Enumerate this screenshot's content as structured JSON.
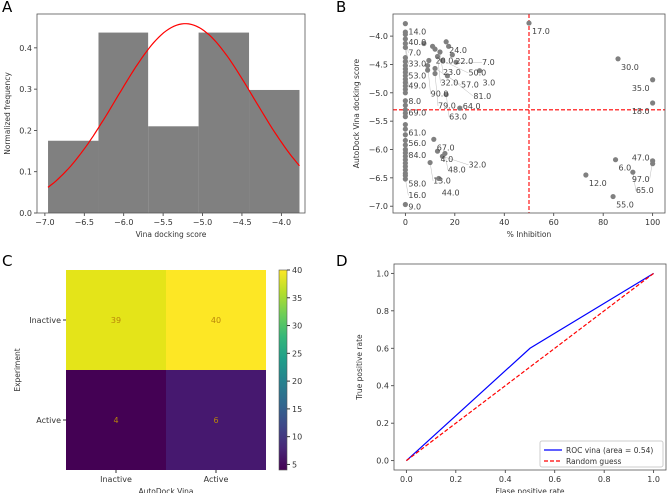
{
  "chart_data": [
    {
      "panel": "A",
      "type": "bar",
      "xlabel": "Vina docking score",
      "ylabel": "Normalized frequency",
      "xlim": [
        -7.1,
        -3.7
      ],
      "ylim": [
        0,
        0.482
      ],
      "xticks": [
        -7.0,
        -6.5,
        -6.0,
        -5.5,
        -5.0,
        -4.5,
        -4.0
      ],
      "yticks": [
        0.0,
        0.1,
        0.2,
        0.3,
        0.4
      ],
      "bin_edges": [
        -6.96,
        -6.32,
        -5.69,
        -5.05,
        -4.41,
        -3.77
      ],
      "values": [
        0.175,
        0.437,
        0.21,
        0.437,
        0.298
      ],
      "bar_color": "#808080",
      "fit_curve": {
        "type": "normal",
        "mean": -5.22,
        "sd": 0.87,
        "color": "#ff0000"
      }
    },
    {
      "panel": "B",
      "type": "scatter",
      "xlabel": "% Inhibition",
      "ylabel": "AutoDock Vina docking score",
      "xlim": [
        -5,
        105
      ],
      "ylim": [
        -7.12,
        -3.61
      ],
      "xticks": [
        0,
        20,
        40,
        60,
        80,
        100
      ],
      "yticks": [
        -4.0,
        -4.5,
        -5.0,
        -5.5,
        -6.0,
        -6.5,
        -7.0
      ],
      "point_color": "#808080",
      "threshold_lines": {
        "x": 50,
        "y": -5.3,
        "color": "#ff0000",
        "style": "dashed"
      },
      "points": [
        [
          0,
          -3.78,
          "14.0"
        ],
        [
          0,
          -3.93,
          "40.0"
        ],
        [
          0,
          -3.97,
          "7.0"
        ],
        [
          0,
          -4.05,
          ""
        ],
        [
          0,
          -4.13,
          "33.0"
        ],
        [
          0,
          -4.2,
          "53.0"
        ],
        [
          0,
          -4.38,
          ""
        ],
        [
          0,
          -4.45,
          "49.0"
        ],
        [
          0,
          -4.52,
          ""
        ],
        [
          0,
          -4.58,
          ""
        ],
        [
          0,
          -4.64,
          ""
        ],
        [
          0,
          -4.7,
          ""
        ],
        [
          0,
          -4.76,
          ""
        ],
        [
          0,
          -4.82,
          ""
        ],
        [
          0,
          -4.88,
          ""
        ],
        [
          0,
          -4.94,
          ""
        ],
        [
          0,
          -5.0,
          "8.0"
        ],
        [
          0,
          -5.14,
          "69.0"
        ],
        [
          0,
          -5.22,
          ""
        ],
        [
          0,
          -5.3,
          ""
        ],
        [
          0,
          -5.36,
          ""
        ],
        [
          0,
          -5.42,
          ""
        ],
        [
          0,
          -5.56,
          "61.0"
        ],
        [
          0,
          -5.64,
          "56.0"
        ],
        [
          0,
          -5.74,
          "84.0"
        ],
        [
          0,
          -5.84,
          ""
        ],
        [
          0,
          -5.92,
          ""
        ],
        [
          0,
          -6.0,
          ""
        ],
        [
          0,
          -6.06,
          ""
        ],
        [
          0,
          -6.12,
          ""
        ],
        [
          0,
          -6.18,
          ""
        ],
        [
          0,
          -6.24,
          ""
        ],
        [
          0,
          -6.3,
          ""
        ],
        [
          0,
          -6.36,
          ""
        ],
        [
          0,
          -6.42,
          ""
        ],
        [
          0,
          -6.46,
          "58.0"
        ],
        [
          0,
          -6.52,
          "16.0"
        ],
        [
          0,
          -6.97,
          "9.0"
        ],
        [
          7.5,
          -4.13,
          ""
        ],
        [
          11,
          -4.18,
          "20.0"
        ],
        [
          12,
          -4.23,
          ""
        ],
        [
          16.5,
          -4.1,
          "24.0"
        ],
        [
          17.5,
          -4.18,
          ""
        ],
        [
          14,
          -4.28,
          "23.0"
        ],
        [
          19,
          -4.33,
          "22.0"
        ],
        [
          13,
          -4.36,
          "32.0"
        ],
        [
          15,
          -4.43,
          "50.0"
        ],
        [
          20.5,
          -4.46,
          "7.0"
        ],
        [
          9.5,
          -4.43,
          ""
        ],
        [
          9,
          -4.52,
          "90.0"
        ],
        [
          12,
          -4.57,
          "57.0"
        ],
        [
          9,
          -4.6,
          ""
        ],
        [
          12,
          -4.66,
          "79.0"
        ],
        [
          17,
          -4.7,
          "81.0"
        ],
        [
          30,
          -4.61,
          "3.0"
        ],
        [
          50,
          -3.77,
          "17.0"
        ],
        [
          86,
          -4.4,
          "30.0"
        ],
        [
          100,
          -4.77,
          "35.0"
        ],
        [
          16.5,
          -5.03,
          "63.0"
        ],
        [
          22,
          -5.27,
          "64.0"
        ],
        [
          100,
          -5.18,
          "18.0"
        ],
        [
          11.5,
          -5.82,
          "67.0"
        ],
        [
          13,
          -6.03,
          "4.0"
        ],
        [
          16,
          -6.07,
          "48.0"
        ],
        [
          15,
          -6.12,
          "32.0"
        ],
        [
          10,
          -6.23,
          "13.0"
        ],
        [
          13.5,
          -6.51,
          "44.0"
        ],
        [
          85,
          -6.18,
          "6.0"
        ],
        [
          100,
          -6.2,
          "97.0"
        ],
        [
          100,
          -6.25,
          "47.0"
        ],
        [
          92,
          -6.4,
          "65.0"
        ],
        [
          73,
          -6.45,
          "12.0"
        ],
        [
          84,
          -6.83,
          "55.0"
        ]
      ]
    },
    {
      "panel": "C",
      "type": "heatmap",
      "xlabel": "AutoDock Vina",
      "ylabel": "Experiment",
      "x_categories": [
        "Inactive",
        "Active"
      ],
      "y_categories": [
        "Inactive",
        "Active"
      ],
      "values": [
        [
          39,
          40
        ],
        [
          4,
          6
        ]
      ],
      "colormap": "viridis",
      "colorbar": {
        "range": [
          4,
          40
        ],
        "ticks": [
          5,
          10,
          15,
          20,
          25,
          30,
          35,
          40
        ]
      },
      "cell_colors": [
        [
          "#e4e419",
          "#fde725"
        ],
        [
          "#440154",
          "#46186f"
        ]
      ]
    },
    {
      "panel": "D",
      "type": "line",
      "xlabel": "Flase positive rate",
      "ylabel": "True positive rate",
      "xlim": [
        -0.05,
        1.05
      ],
      "ylim": [
        -0.05,
        1.05
      ],
      "xticks": [
        0.0,
        0.2,
        0.4,
        0.6,
        0.8,
        1.0
      ],
      "yticks": [
        0.0,
        0.2,
        0.4,
        0.6,
        0.8,
        1.0
      ],
      "legend_position": "bottom-right",
      "series": [
        {
          "name": "ROC vina (area = 0.54)",
          "x": [
            0,
            0.5,
            1
          ],
          "y": [
            0,
            0.6,
            1
          ],
          "color": "#0000ff",
          "style": "solid"
        },
        {
          "name": "Random guess",
          "x": [
            0,
            1
          ],
          "y": [
            0,
            1
          ],
          "color": "#ff0000",
          "style": "dashed"
        }
      ]
    }
  ],
  "panel_labels": [
    "A",
    "B",
    "C",
    "D"
  ]
}
